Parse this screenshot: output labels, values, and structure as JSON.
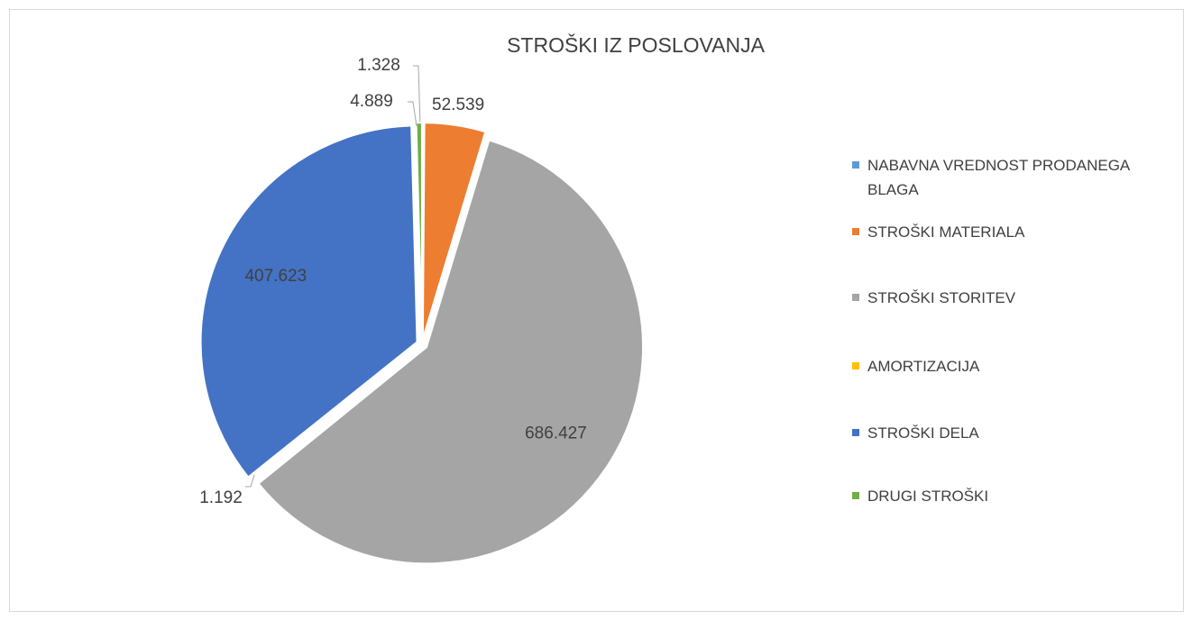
{
  "chart_data": {
    "type": "pie",
    "title": "STROŠKI IZ POSLOVANJA",
    "categories": [
      "NABAVNA VREDNOST PRODANEGA BLAGA",
      "STROŠKI MATERIALA",
      "STROŠKI STORITEV",
      "AMORTIZACIJA",
      "STROŠKI DELA",
      "DRUGI STROŠKI"
    ],
    "values": [
      1.328,
      52.539,
      686.427,
      1.192,
      407.623,
      4.889
    ],
    "colors": [
      "#5B9BD5",
      "#ED7D31",
      "#A5A5A5",
      "#FFC000",
      "#4472C4",
      "#70AD47"
    ],
    "legend": "right"
  }
}
